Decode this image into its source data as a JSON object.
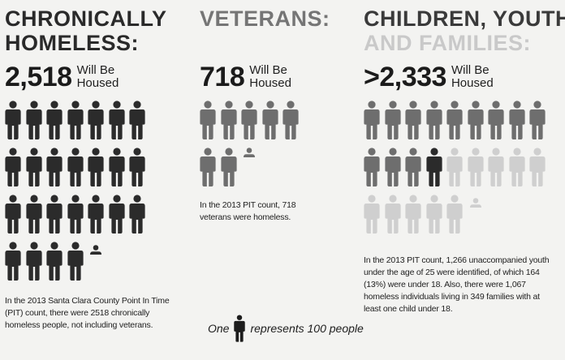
{
  "sections": {
    "chronic": {
      "heading_line1": "CHRONICALLY",
      "heading_line2": "HOMELESS:",
      "number": "2,518",
      "number_label": "Will Be Housed",
      "description": "In the 2013 Santa Clara County Point In Time (PIT) count, there were 2518 chronically homeless people, not including veterans."
    },
    "veterans": {
      "heading_line1": "VETERANS:",
      "number": "718",
      "number_label": "Will Be Housed",
      "description": "In the 2013 PIT count, 718 veterans were homeless."
    },
    "youth": {
      "heading_line1": "CHILDREN, YOUTH,",
      "heading_line2": "AND FAMILIES:",
      "number": ">2,333",
      "number_label": "Will Be Housed",
      "description": "In the 2013 PIT count, 1,266 unaccompanied youth under the age of 25 were identified, of which 164 (13%) were under 18. Also, there were 1,067 homeless individuals living in 349 families with at least one child under 18."
    }
  },
  "legend": {
    "prefix": "One",
    "suffix": "represents 100 people"
  },
  "colors": {
    "dark": "#2b2b2b",
    "mid": "#6e6e6e",
    "light": "#cfcfcf",
    "background": "#f3f3f1"
  },
  "icon": "person-icon"
}
